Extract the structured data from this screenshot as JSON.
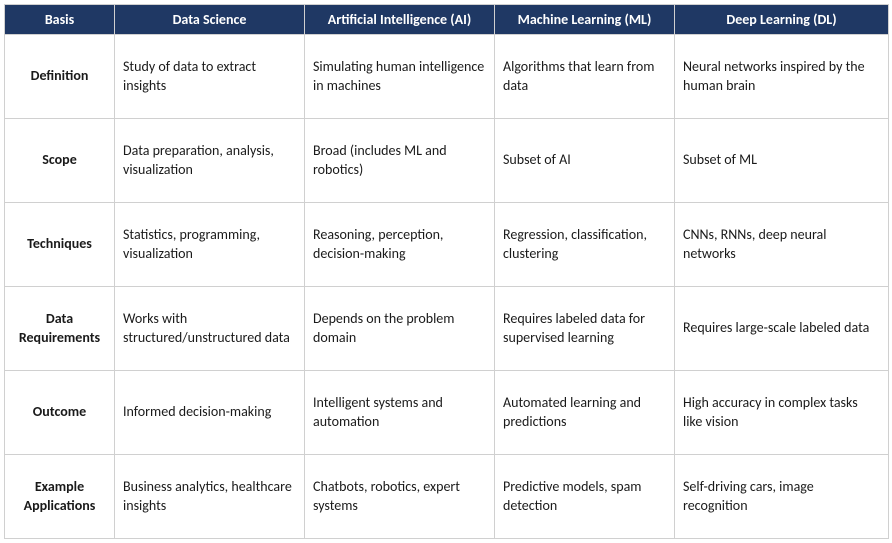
{
  "table": {
    "header_bg": "#1f3864",
    "header_color": "#ffffff",
    "border_color": "#d0d0d0",
    "columns": [
      "Basis",
      "Data Science",
      "Artificial Intelligence (AI)",
      "Machine Learning (ML)",
      "Deep Learning (DL)"
    ],
    "rows": [
      {
        "basis": "Definition",
        "cells": [
          "Study of data to extract insights",
          "Simulating human intelligence in machines",
          "Algorithms that learn from data",
          "Neural networks inspired by the human brain"
        ]
      },
      {
        "basis": "Scope",
        "cells": [
          "Data preparation, analysis, visualization",
          "Broad (includes ML and robotics)",
          "Subset of AI",
          "Subset of ML"
        ]
      },
      {
        "basis": "Techniques",
        "cells": [
          "Statistics, programming, visualization",
          "Reasoning, perception, decision-making",
          "Regression, classification, clustering",
          "CNNs, RNNs, deep neural networks"
        ]
      },
      {
        "basis": "Data Requirements",
        "cells": [
          "Works with structured/unstructured data",
          "Depends on the problem domain",
          "Requires labeled data for supervised learning",
          "Requires large-scale labeled data"
        ]
      },
      {
        "basis": "Outcome",
        "cells": [
          "Informed decision-making",
          "Intelligent systems and automation",
          "Automated learning and predictions",
          "High accuracy in complex tasks like vision"
        ]
      },
      {
        "basis": "Example Applications",
        "cells": [
          "Business analytics, healthcare insights",
          "Chatbots, robotics, expert systems",
          "Predictive models, spam detection",
          "Self-driving cars, image recognition"
        ]
      }
    ]
  }
}
